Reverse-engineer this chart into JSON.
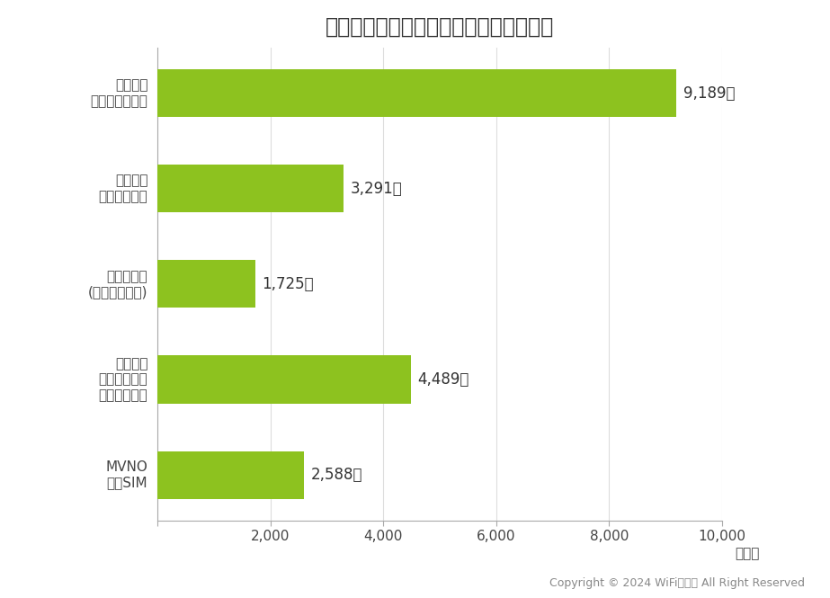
{
  "title": "》事業者タイプ別の平均携帯電話料金》",
  "title_text": "【事業者タイプ別の平均携帯電話料金】",
  "categories": [
    "MVNO\n格安SIM",
    "キャリア\nオンライン用\n格安ブランド",
    "新キャリア\n(楽天モバイル)",
    "キャリア\nサブブランド",
    "キャリア\nメインブランド"
  ],
  "values": [
    2588,
    4489,
    1725,
    3291,
    9189
  ],
  "labels": [
    "2,588円",
    "4,489円",
    "1,725円",
    "3,291円",
    "9,189円"
  ],
  "bar_color": "#8DC21F",
  "background_color": "#FFFFFF",
  "title_fontsize": 17,
  "label_fontsize": 12,
  "tick_fontsize": 11,
  "copyright_text": "Copyright © 2024 WiFiの極み All Right Reserved",
  "xlabel": "【円】",
  "xlim": [
    0,
    10000
  ],
  "xticks": [
    0,
    2000,
    4000,
    6000,
    8000,
    10000
  ],
  "xtick_labels": [
    "",
    "2,000",
    "4,000",
    "6,000",
    "8,000",
    "10,000"
  ]
}
